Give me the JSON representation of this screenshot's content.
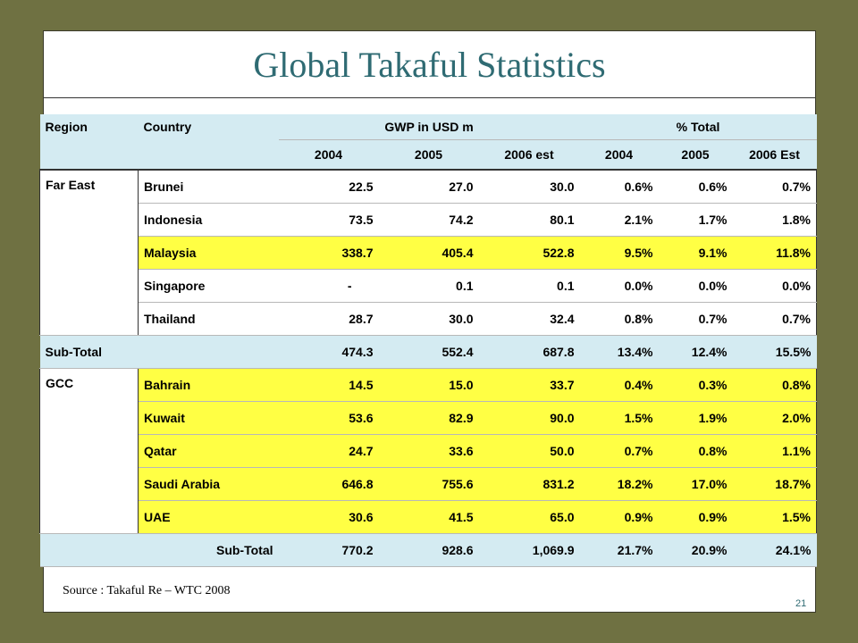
{
  "title": "Global Takaful Statistics",
  "header": {
    "region": "Region",
    "country": "Country",
    "gwp": "GWP in USD m",
    "pct": "% Total",
    "years": [
      "2004",
      "2005",
      "2006 est",
      "2004",
      "2005",
      "2006 Est"
    ]
  },
  "far_east": {
    "region": "Far East",
    "rows": [
      {
        "country": "Brunei",
        "v": [
          "22.5",
          "27.0",
          "30.0",
          "0.6%",
          "0.6%",
          "0.7%"
        ]
      },
      {
        "country": "Indonesia",
        "v": [
          "73.5",
          "74.2",
          "80.1",
          "2.1%",
          "1.7%",
          "1.8%"
        ]
      },
      {
        "country": "Malaysia",
        "v": [
          "338.7",
          "405.4",
          "522.8",
          "9.5%",
          "9.1%",
          "11.8%"
        ]
      },
      {
        "country": "Singapore",
        "v": [
          "-",
          "0.1",
          "0.1",
          "0.0%",
          "0.0%",
          "0.0%"
        ]
      },
      {
        "country": "Thailand",
        "v": [
          "28.7",
          "30.0",
          "32.4",
          "0.8%",
          "0.7%",
          "0.7%"
        ]
      }
    ],
    "subtotal": {
      "label": "Sub-Total",
      "v": [
        "474.3",
        "552.4",
        "687.8",
        "13.4%",
        "12.4%",
        "15.5%"
      ]
    }
  },
  "gcc": {
    "region": "GCC",
    "rows": [
      {
        "country": "Bahrain",
        "v": [
          "14.5",
          "15.0",
          "33.7",
          "0.4%",
          "0.3%",
          "0.8%"
        ]
      },
      {
        "country": "Kuwait",
        "v": [
          "53.6",
          "82.9",
          "90.0",
          "1.5%",
          "1.9%",
          "2.0%"
        ]
      },
      {
        "country": "Qatar",
        "v": [
          "24.7",
          "33.6",
          "50.0",
          "0.7%",
          "0.8%",
          "1.1%"
        ]
      },
      {
        "country": "Saudi Arabia",
        "v": [
          "646.8",
          "755.6",
          "831.2",
          "18.2%",
          "17.0%",
          "18.7%"
        ]
      },
      {
        "country": "UAE",
        "v": [
          "30.6",
          "41.5",
          "65.0",
          "0.9%",
          "0.9%",
          "1.5%"
        ]
      }
    ],
    "subtotal": {
      "label": "Sub-Total",
      "v": [
        "770.2",
        "928.6",
        "1,069.9",
        "21.7%",
        "20.9%",
        "24.1%"
      ]
    }
  },
  "source": "Source : Takaful Re – WTC 2008",
  "page_number": "21",
  "colors": {
    "background": "#6f7142",
    "title": "#2f6b73",
    "highlight": "#ffff44",
    "header": "#d4ebf2"
  }
}
